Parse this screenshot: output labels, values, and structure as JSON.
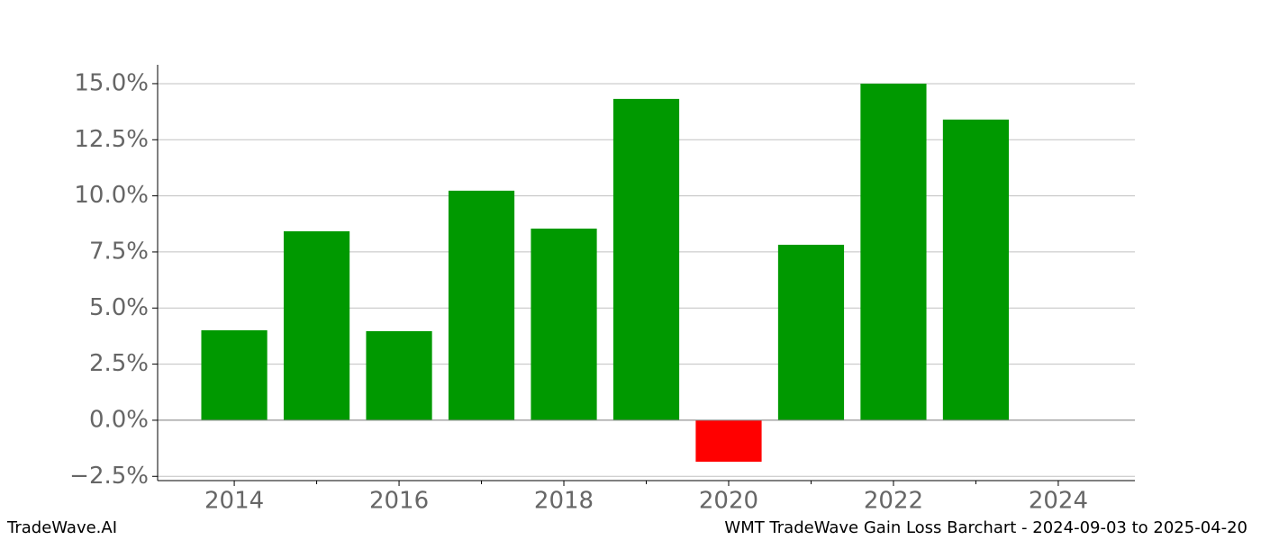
{
  "chart_data": {
    "type": "bar",
    "x": [
      2014,
      2015,
      2016,
      2017,
      2018,
      2019,
      2020,
      2021,
      2022,
      2023
    ],
    "values": [
      4.01,
      8.42,
      3.97,
      10.23,
      8.54,
      14.32,
      -1.85,
      7.82,
      15.0,
      13.4
    ],
    "colors": [
      "#009900",
      "#009900",
      "#009900",
      "#009900",
      "#009900",
      "#009900",
      "#ff0000",
      "#009900",
      "#009900",
      "#009900"
    ],
    "bar_width": 0.8,
    "xlim": [
      2013.07,
      2024.93
    ],
    "xticks": [
      2014,
      2016,
      2018,
      2020,
      2022,
      2024
    ],
    "xminorticks": [
      2015,
      2017,
      2019,
      2021,
      2023
    ],
    "ylim": [
      -2.69,
      15.84
    ],
    "yticks": [
      {
        "value": -2.5,
        "label": "−2.5%"
      },
      {
        "value": 0,
        "label": "0.0%"
      },
      {
        "value": 2.5,
        "label": "2.5%"
      },
      {
        "value": 5,
        "label": "5.0%"
      },
      {
        "value": 7.5,
        "label": "7.5%"
      },
      {
        "value": 10,
        "label": "10.0%"
      },
      {
        "value": 12.5,
        "label": "12.5%"
      },
      {
        "value": 15,
        "label": "15.0%"
      }
    ],
    "grid": true,
    "footer_left": "TradeWave.AI",
    "footer_right": "WMT TradeWave Gain Loss Barchart - 2024-09-03 to 2025-04-20"
  }
}
